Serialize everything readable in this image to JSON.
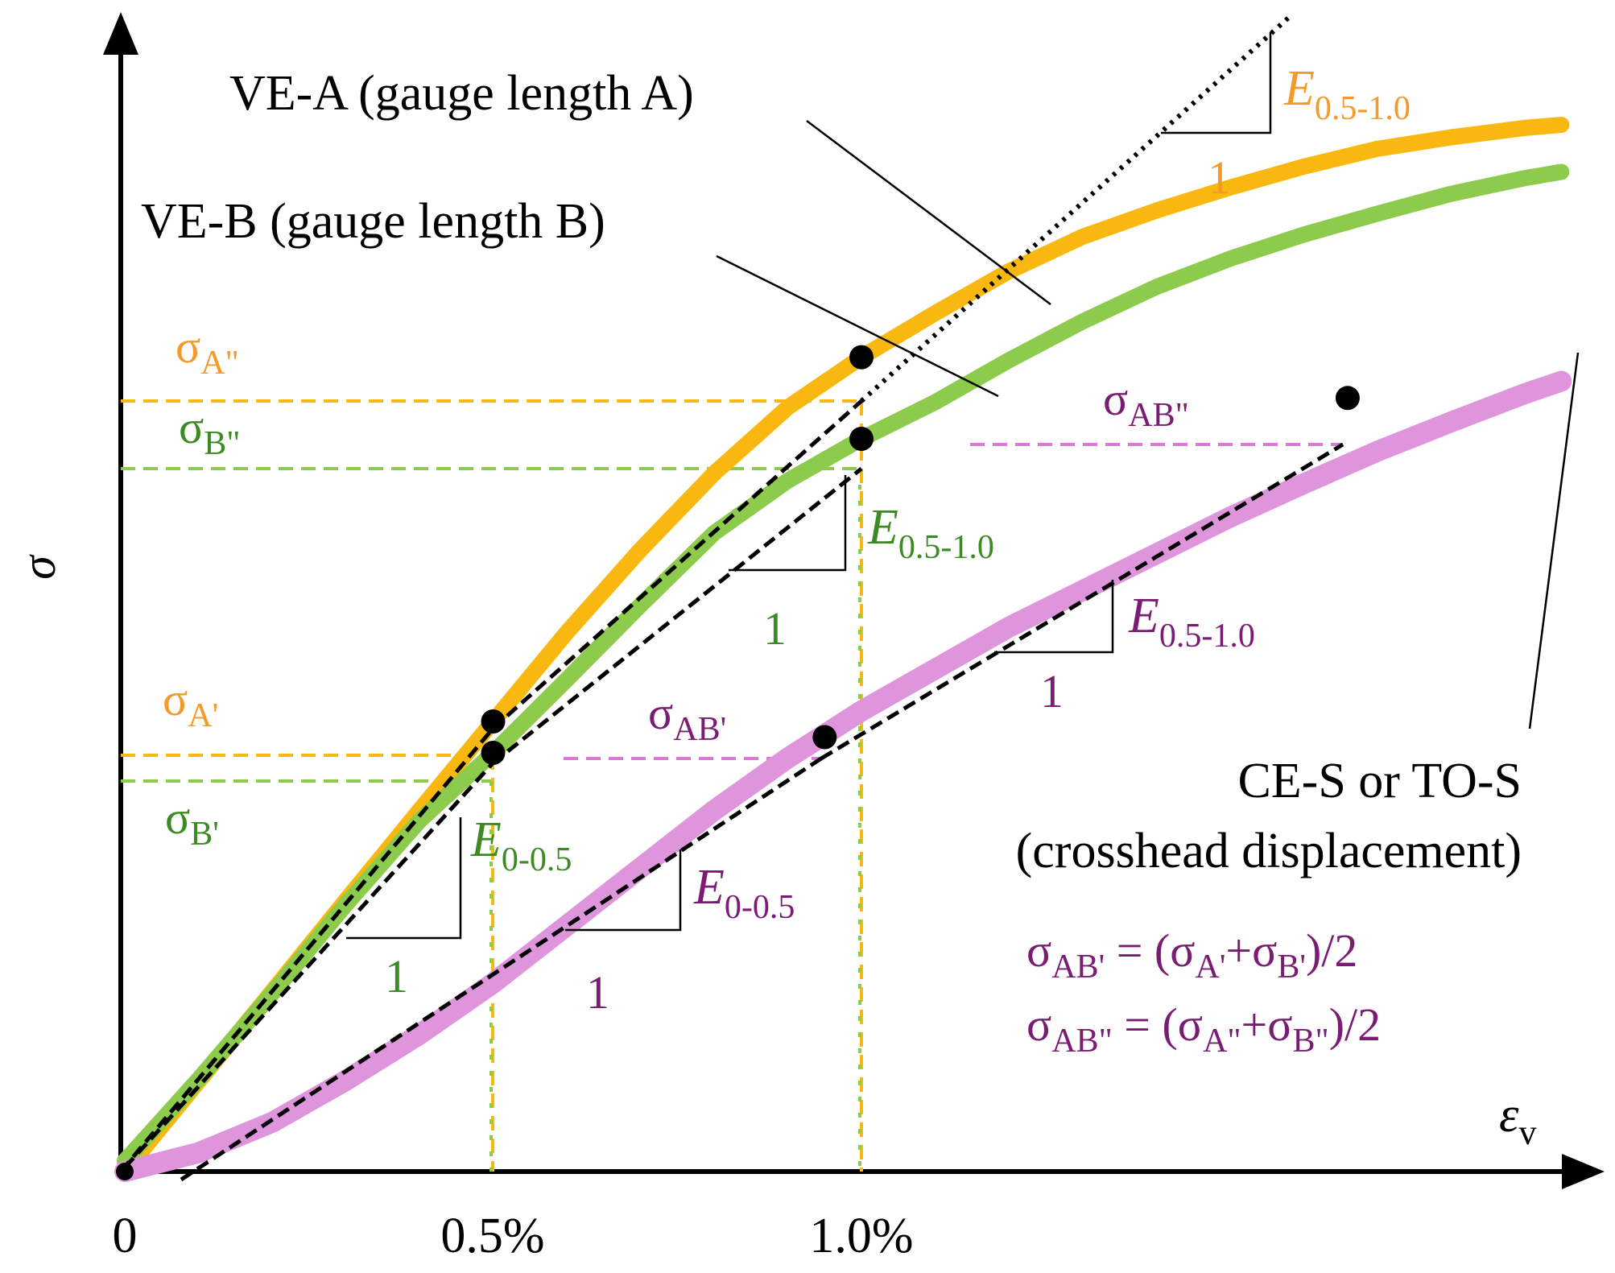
{
  "chart_data": {
    "type": "line",
    "title": "",
    "xlabel": "ε",
    "xlabel_sub": "v",
    "ylabel": "σ",
    "x_ticks": [
      {
        "value": 0,
        "label": "0"
      },
      {
        "value": 0.5,
        "label": "0.5%"
      },
      {
        "value": 1.0,
        "label": "1.0%"
      }
    ],
    "xlim": [
      0,
      1.95
    ],
    "ylim": [
      0,
      1.0
    ],
    "colors": {
      "orange": "#F9B80F",
      "green": "#8CCB4B",
      "pink": "#DE95DB",
      "orange_text": "#F39A2A",
      "green_text": "#3C8A24",
      "purple_text": "#7A1B74",
      "pink_dash": "#D879D5"
    },
    "series": [
      {
        "name": "VE-A (gauge length A)",
        "color": "#F9B80F",
        "x": [
          0,
          0.1,
          0.2,
          0.3,
          0.4,
          0.5,
          0.6,
          0.7,
          0.8,
          0.9,
          1.0,
          1.1,
          1.2,
          1.3,
          1.4,
          1.5,
          1.6,
          1.7,
          1.8,
          1.9,
          1.95
        ],
        "y": [
          0.0,
          0.086,
          0.172,
          0.259,
          0.345,
          0.43,
          0.515,
          0.594,
          0.667,
          0.73,
          0.778,
          0.82,
          0.86,
          0.893,
          0.918,
          0.94,
          0.96,
          0.977,
          0.988,
          0.997,
          1.0
        ]
      },
      {
        "name": "VE-B (gauge length B)",
        "color": "#8CCB4B",
        "x": [
          0,
          0.1,
          0.2,
          0.3,
          0.4,
          0.5,
          0.6,
          0.7,
          0.8,
          0.9,
          1.0,
          1.1,
          1.2,
          1.3,
          1.4,
          1.5,
          1.6,
          1.7,
          1.8,
          1.9,
          1.95
        ],
        "y": [
          0.01,
          0.088,
          0.17,
          0.255,
          0.335,
          0.4,
          0.47,
          0.541,
          0.61,
          0.66,
          0.7,
          0.735,
          0.775,
          0.812,
          0.845,
          0.872,
          0.895,
          0.915,
          0.934,
          0.949,
          0.955
        ]
      },
      {
        "name": "CE-S or TO-S (crosshead displacement)",
        "color": "#DE95DB",
        "x": [
          0,
          0.1,
          0.2,
          0.3,
          0.4,
          0.5,
          0.6,
          0.7,
          0.8,
          0.9,
          1.0,
          1.1,
          1.2,
          1.3,
          1.4,
          1.5,
          1.6,
          1.7,
          1.8,
          1.9,
          1.95
        ],
        "y": [
          0.0,
          0.018,
          0.047,
          0.087,
          0.131,
          0.18,
          0.235,
          0.29,
          0.345,
          0.395,
          0.44,
          0.48,
          0.52,
          0.555,
          0.59,
          0.625,
          0.657,
          0.688,
          0.716,
          0.743,
          0.755
        ]
      }
    ],
    "points": [
      {
        "name": "A'",
        "x": 0.5,
        "y": 0.43
      },
      {
        "name": "B'",
        "x": 0.5,
        "y": 0.4
      },
      {
        "name": "A''",
        "x": 1.0,
        "y": 0.778
      },
      {
        "name": "B''",
        "x": 1.0,
        "y": 0.7
      },
      {
        "name": "AB'",
        "x": 0.95,
        "y": 0.415
      },
      {
        "name": "AB''",
        "x": 1.66,
        "y": 0.739
      }
    ],
    "labels": {
      "ve_a": "VE-A (gauge length A)",
      "ve_b": "VE-B (gauge length B)",
      "crosshead_line1": "CE-S or TO-S",
      "crosshead_line2": "(crosshead displacement)",
      "sigma": "σ",
      "sub_a2": "A\"",
      "sub_b2": "B\"",
      "sub_a1": "A'",
      "sub_b1": "B'",
      "sub_ab1": "AB'",
      "sub_ab2": "AB\"",
      "E": "E",
      "sub_e1": "0.5-1.0",
      "sub_e0": "0-0.5",
      "one": "1",
      "eq1_lhs": "AB'",
      "eq1_mid": " = (σ",
      "eq1_a": "A'",
      "eq1_plus": "+σ",
      "eq1_b": "B'",
      "eq1_end": ")/2",
      "eq2_lhs": "AB\"",
      "eq2_mid": " = (σ",
      "eq2_a": "A\"",
      "eq2_plus": "+σ",
      "eq2_b": "B\"",
      "eq2_end": ")/2"
    }
  }
}
